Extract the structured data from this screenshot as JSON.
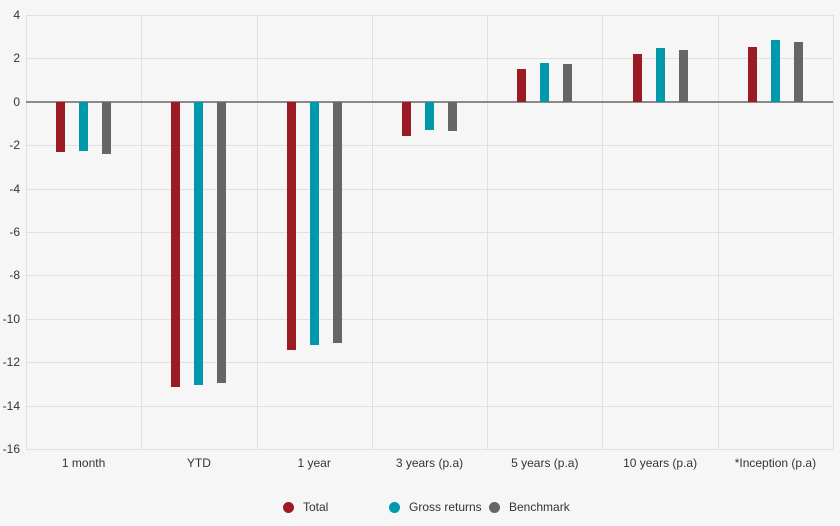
{
  "chart_data": {
    "type": "bar",
    "title": "",
    "xlabel": "",
    "ylabel": "",
    "categories": [
      "1 month",
      "YTD",
      "1 year",
      "3 years (p.a)",
      "5 years (p.a)",
      "10 years (p.a)",
      "*Inception (p.a)"
    ],
    "series": [
      {
        "name": "Total",
        "color": "#9A1B23",
        "values": [
          -2.3,
          -13.15,
          -11.45,
          -1.6,
          1.5,
          2.2,
          2.55
        ]
      },
      {
        "name": "Gross returns",
        "color": "#0099AC",
        "values": [
          -2.25,
          -13.05,
          -11.2,
          -1.3,
          1.8,
          2.5,
          2.85
        ]
      },
      {
        "name": "Benchmark",
        "color": "#666666",
        "values": [
          -2.4,
          -12.95,
          -11.1,
          -1.35,
          1.75,
          2.4,
          2.75
        ]
      }
    ],
    "ylim": [
      -16,
      4
    ],
    "ytick_step": 2,
    "y_tick_labels": [
      "4",
      "2",
      "0",
      "-2",
      "-4",
      "-6",
      "-8",
      "-10",
      "-12",
      "-14",
      "-16"
    ],
    "grid": true,
    "legend_position": "bottom"
  },
  "style": {
    "background": "#F6F6F6",
    "gridline_color": "#E0E0E0",
    "zero_line_color": "#8A8A8A",
    "label_color": "#33333B"
  }
}
